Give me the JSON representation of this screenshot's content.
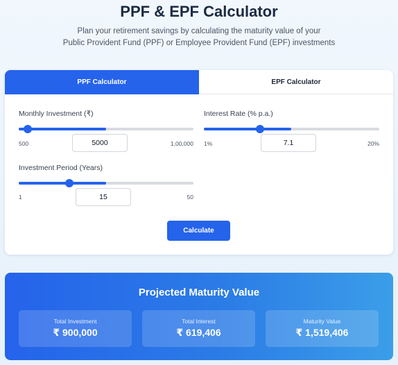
{
  "header": {
    "title": "PPF & EPF Calculator",
    "subtitle_line1": "Plan your retirement savings by calculating the maturity value of your",
    "subtitle_line2": "Public Provident Fund (PPF) or Employee Provident Fund (EPF) investments"
  },
  "tabs": [
    {
      "label": "PPF Calculator",
      "active": true
    },
    {
      "label": "EPF Calculator",
      "active": false
    }
  ],
  "fields": {
    "monthly_investment": {
      "label": "Monthly Investment (₹)",
      "value": "5000",
      "min_label": "500",
      "max_label": "1,00,000",
      "level": 0.05
    },
    "interest_rate": {
      "label": "Interest Rate (% p.a.)",
      "value": "7.1",
      "min_label": "1%",
      "max_label": "20%",
      "level": 0.32
    },
    "investment_period": {
      "label": "Investment Period (Years)",
      "value": "15",
      "min_label": "1",
      "max_label": "50",
      "level": 0.29
    }
  },
  "calculate_label": "Calculate",
  "results": {
    "title": "Projected Maturity Value",
    "items": [
      {
        "label": "Total Investment",
        "value": "₹ 900,000"
      },
      {
        "label": "Total Interest",
        "value": "₹ 619,406"
      },
      {
        "label": "Maturity Value",
        "value": "₹ 1,519,406"
      }
    ]
  },
  "colors": {
    "accent": "#2563eb",
    "track": "#d8dbe0"
  }
}
